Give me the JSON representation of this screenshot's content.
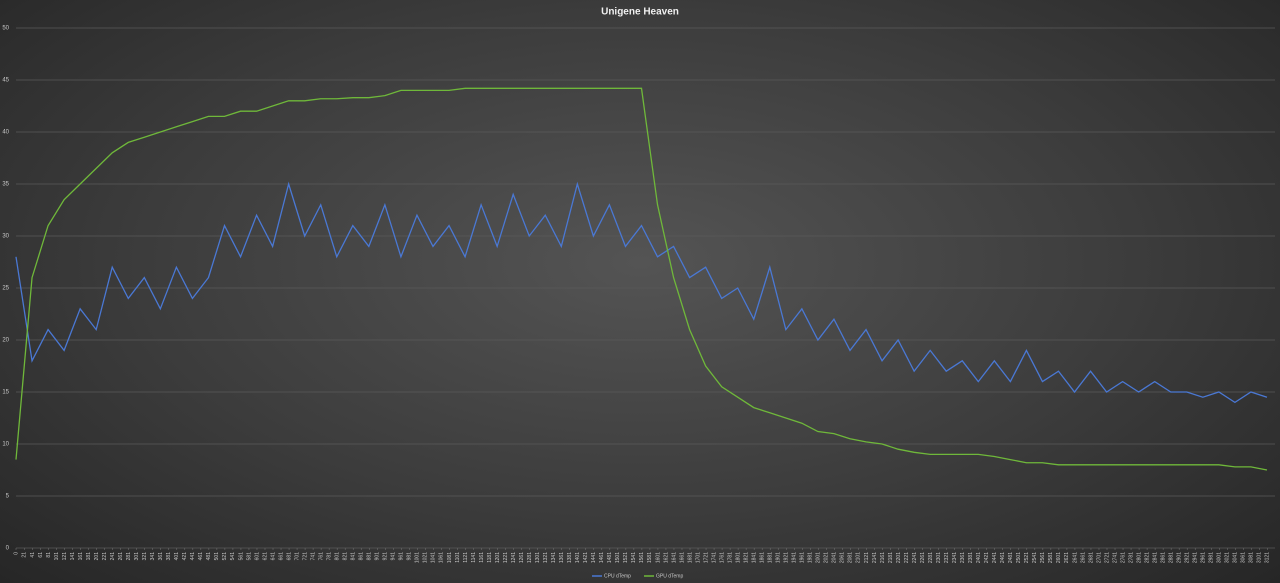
{
  "chart_data": {
    "type": "line",
    "title": "Unigene Heaven",
    "x": [
      0,
      40,
      80,
      120,
      160,
      200,
      240,
      280,
      320,
      360,
      400,
      440,
      480,
      520,
      560,
      600,
      640,
      680,
      720,
      760,
      800,
      840,
      880,
      920,
      960,
      1000,
      1040,
      1080,
      1120,
      1160,
      1200,
      1240,
      1280,
      1320,
      1360,
      1400,
      1440,
      1480,
      1520,
      1560,
      1600,
      1640,
      1680,
      1720,
      1760,
      1800,
      1840,
      1880,
      1920,
      1960,
      2000,
      2040,
      2080,
      2120,
      2160,
      2200,
      2240,
      2280,
      2320,
      2360,
      2400,
      2440,
      2480,
      2520,
      2560,
      2600,
      2640,
      2680,
      2720,
      2760,
      2800,
      2840,
      2880,
      2920,
      2960,
      3000,
      3040,
      3080,
      3120
    ],
    "series": [
      {
        "name": "CPU dTemp",
        "color": "#4a78d4",
        "values": [
          28,
          18,
          21,
          19,
          23,
          21,
          27,
          24,
          26,
          23,
          27,
          24,
          26,
          31,
          28,
          32,
          29,
          35,
          30,
          33,
          28,
          31,
          29,
          33,
          28,
          32,
          29,
          31,
          28,
          33,
          29,
          34,
          30,
          32,
          29,
          35,
          30,
          33,
          29,
          31,
          28,
          29,
          26,
          27,
          24,
          25,
          22,
          27,
          21,
          23,
          20,
          22,
          19,
          21,
          18,
          20,
          17,
          19,
          17,
          18,
          16,
          18,
          16,
          19,
          16,
          17,
          15,
          17,
          15,
          16,
          15,
          16,
          15,
          15,
          14.5,
          15,
          14,
          15,
          14.5
        ]
      },
      {
        "name": "GPU dTemp",
        "color": "#6fb83a",
        "values": [
          8.5,
          26,
          31,
          33.5,
          35,
          36.5,
          38,
          39,
          39.5,
          40,
          40.5,
          41,
          41.5,
          41.5,
          42,
          42,
          42.5,
          43,
          43,
          43.2,
          43.2,
          43.3,
          43.3,
          43.5,
          44,
          44,
          44,
          44,
          44.2,
          44.2,
          44.2,
          44.2,
          44.2,
          44.2,
          44.2,
          44.2,
          44.2,
          44.2,
          44.2,
          44.2,
          33,
          26,
          21,
          17.5,
          15.5,
          14.5,
          13.5,
          13,
          12.5,
          12,
          11.2,
          11,
          10.5,
          10.2,
          10,
          9.5,
          9.2,
          9,
          9,
          9,
          9,
          8.8,
          8.5,
          8.2,
          8.2,
          8,
          8,
          8,
          8,
          8,
          8,
          8,
          8,
          8,
          8,
          8,
          7.8,
          7.8,
          7.5
        ]
      }
    ],
    "xlim": [
      0,
      3140
    ],
    "xticks": [
      0,
      21,
      41,
      61,
      81,
      101,
      121,
      141,
      161,
      181,
      201,
      221,
      241,
      261,
      281,
      301,
      321,
      341,
      361,
      381,
      401,
      421,
      441,
      461,
      481,
      501,
      521,
      541,
      561,
      581,
      601,
      621,
      641,
      661,
      681,
      701,
      721,
      741,
      761,
      781,
      801,
      821,
      841,
      861,
      881,
      901,
      921,
      941,
      961,
      981,
      1001,
      1021,
      1041,
      1061,
      1081,
      1101,
      1121,
      1141,
      1161,
      1181,
      1201,
      1221,
      1241,
      1261,
      1281,
      1301,
      1321,
      1341,
      1361,
      1381,
      1401,
      1421,
      1441,
      1461,
      1481,
      1501,
      1521,
      1541,
      1561,
      1581,
      1601,
      1621,
      1641,
      1661,
      1681,
      1701,
      1721,
      1741,
      1761,
      1781,
      1801,
      1821,
      1841,
      1861,
      1881,
      1901,
      1921,
      1941,
      1961,
      1981,
      2001,
      2021,
      2041,
      2061,
      2081,
      2101,
      2121,
      2141,
      2161,
      2181,
      2201,
      2221,
      2241,
      2261,
      2281,
      2301,
      2321,
      2341,
      2361,
      2381,
      2401,
      2421,
      2441,
      2461,
      2481,
      2501,
      2521,
      2541,
      2561,
      2581,
      2601,
      2621,
      2641,
      2661,
      2681,
      2701,
      2721,
      2741,
      2761,
      2781,
      2801,
      2821,
      2841,
      2861,
      2881,
      2901,
      2921,
      2941,
      2961,
      2981,
      3001,
      3021,
      3041,
      3061,
      3081,
      3101,
      3121
    ],
    "ylim": [
      0,
      50
    ],
    "yticks": [
      0,
      5,
      10,
      15,
      20,
      25,
      30,
      35,
      40,
      45,
      50
    ],
    "grid": true,
    "legend": "bottom"
  }
}
